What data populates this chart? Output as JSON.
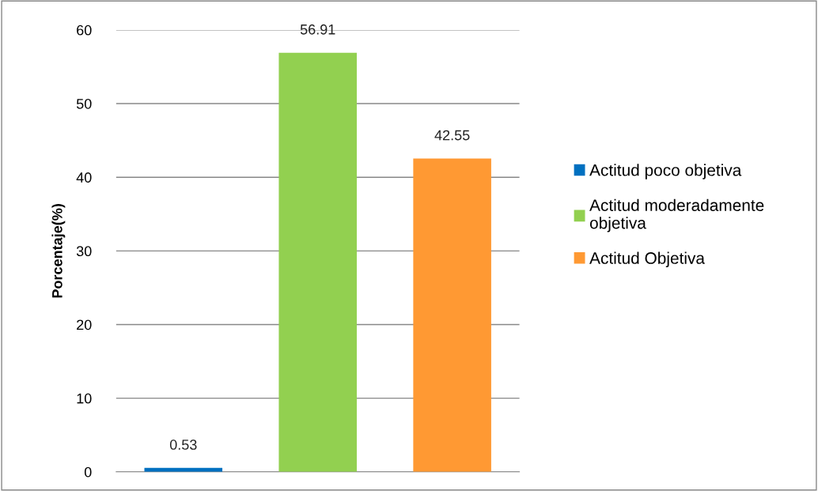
{
  "chart_data": {
    "type": "bar",
    "ylabel": "Porcentaje(%)",
    "categories": [
      null,
      null,
      null
    ],
    "series": [
      {
        "name": "Actitud poco objetiva",
        "color": "#0070c0",
        "values": [
          0.53,
          null,
          null
        ]
      },
      {
        "name": "Actitud moderadamente objetiva",
        "color": "#92d050",
        "values": [
          null,
          56.91,
          null
        ]
      },
      {
        "name": "Actitud Objetiva",
        "color": "#ff9933",
        "values": [
          null,
          null,
          42.55
        ]
      }
    ],
    "ylim": [
      0,
      60
    ],
    "yticks": [
      0,
      10,
      20,
      30,
      40,
      50,
      60
    ],
    "grid": "y",
    "legend": "right",
    "data_labels": true
  }
}
